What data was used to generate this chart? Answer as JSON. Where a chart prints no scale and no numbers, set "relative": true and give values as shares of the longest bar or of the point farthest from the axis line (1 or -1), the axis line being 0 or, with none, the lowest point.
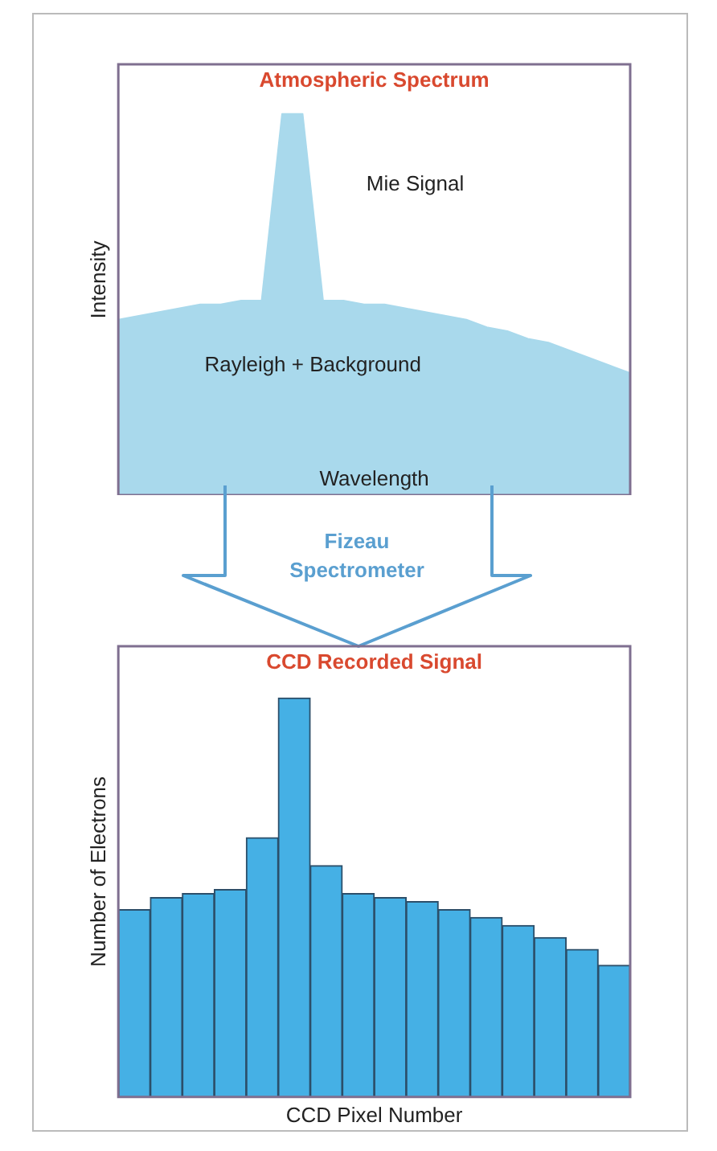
{
  "chart_data": [
    {
      "type": "area",
      "title": "Atmospheric Spectrum",
      "xlabel": "Wavelength",
      "ylabel": "Intensity",
      "relative": true,
      "tick_labels": false,
      "grid": false,
      "legend": false,
      "categories": [
        null,
        null,
        null,
        null,
        null,
        null,
        null,
        null,
        null,
        null,
        null,
        null,
        null,
        null,
        null,
        null,
        null,
        null,
        null,
        null,
        null,
        null,
        null,
        null,
        null,
        null
      ],
      "series": [
        {
          "color": "#a9d9ec",
          "values": [
            0.46,
            0.47,
            0.48,
            0.49,
            0.5,
            0.5,
            0.51,
            0.51,
            1.0,
            1.0,
            0.51,
            0.51,
            0.5,
            0.5,
            0.49,
            0.48,
            0.47,
            0.46,
            0.44,
            0.43,
            0.41,
            0.4,
            0.38,
            0.36,
            0.34,
            0.32
          ]
        }
      ],
      "annotations": [
        "Mie Signal",
        "Rayleigh + Background"
      ]
    },
    {
      "type": "bar",
      "title": "CCD Recorded Signal",
      "xlabel": "CCD Pixel Number",
      "ylabel": "Number of Electrons",
      "relative": true,
      "tick_labels": false,
      "grid": false,
      "legend": false,
      "categories": [
        null,
        null,
        null,
        null,
        null,
        null,
        null,
        null,
        null,
        null,
        null,
        null,
        null,
        null,
        null,
        null
      ],
      "series": [
        {
          "color": "#45b0e5",
          "values": [
            0.47,
            0.5,
            0.51,
            0.52,
            0.65,
            1.0,
            0.58,
            0.51,
            0.5,
            0.49,
            0.47,
            0.45,
            0.43,
            0.4,
            0.37,
            0.33
          ]
        }
      ],
      "annotations": [
        "Fizeau Spectrometer"
      ]
    }
  ]
}
